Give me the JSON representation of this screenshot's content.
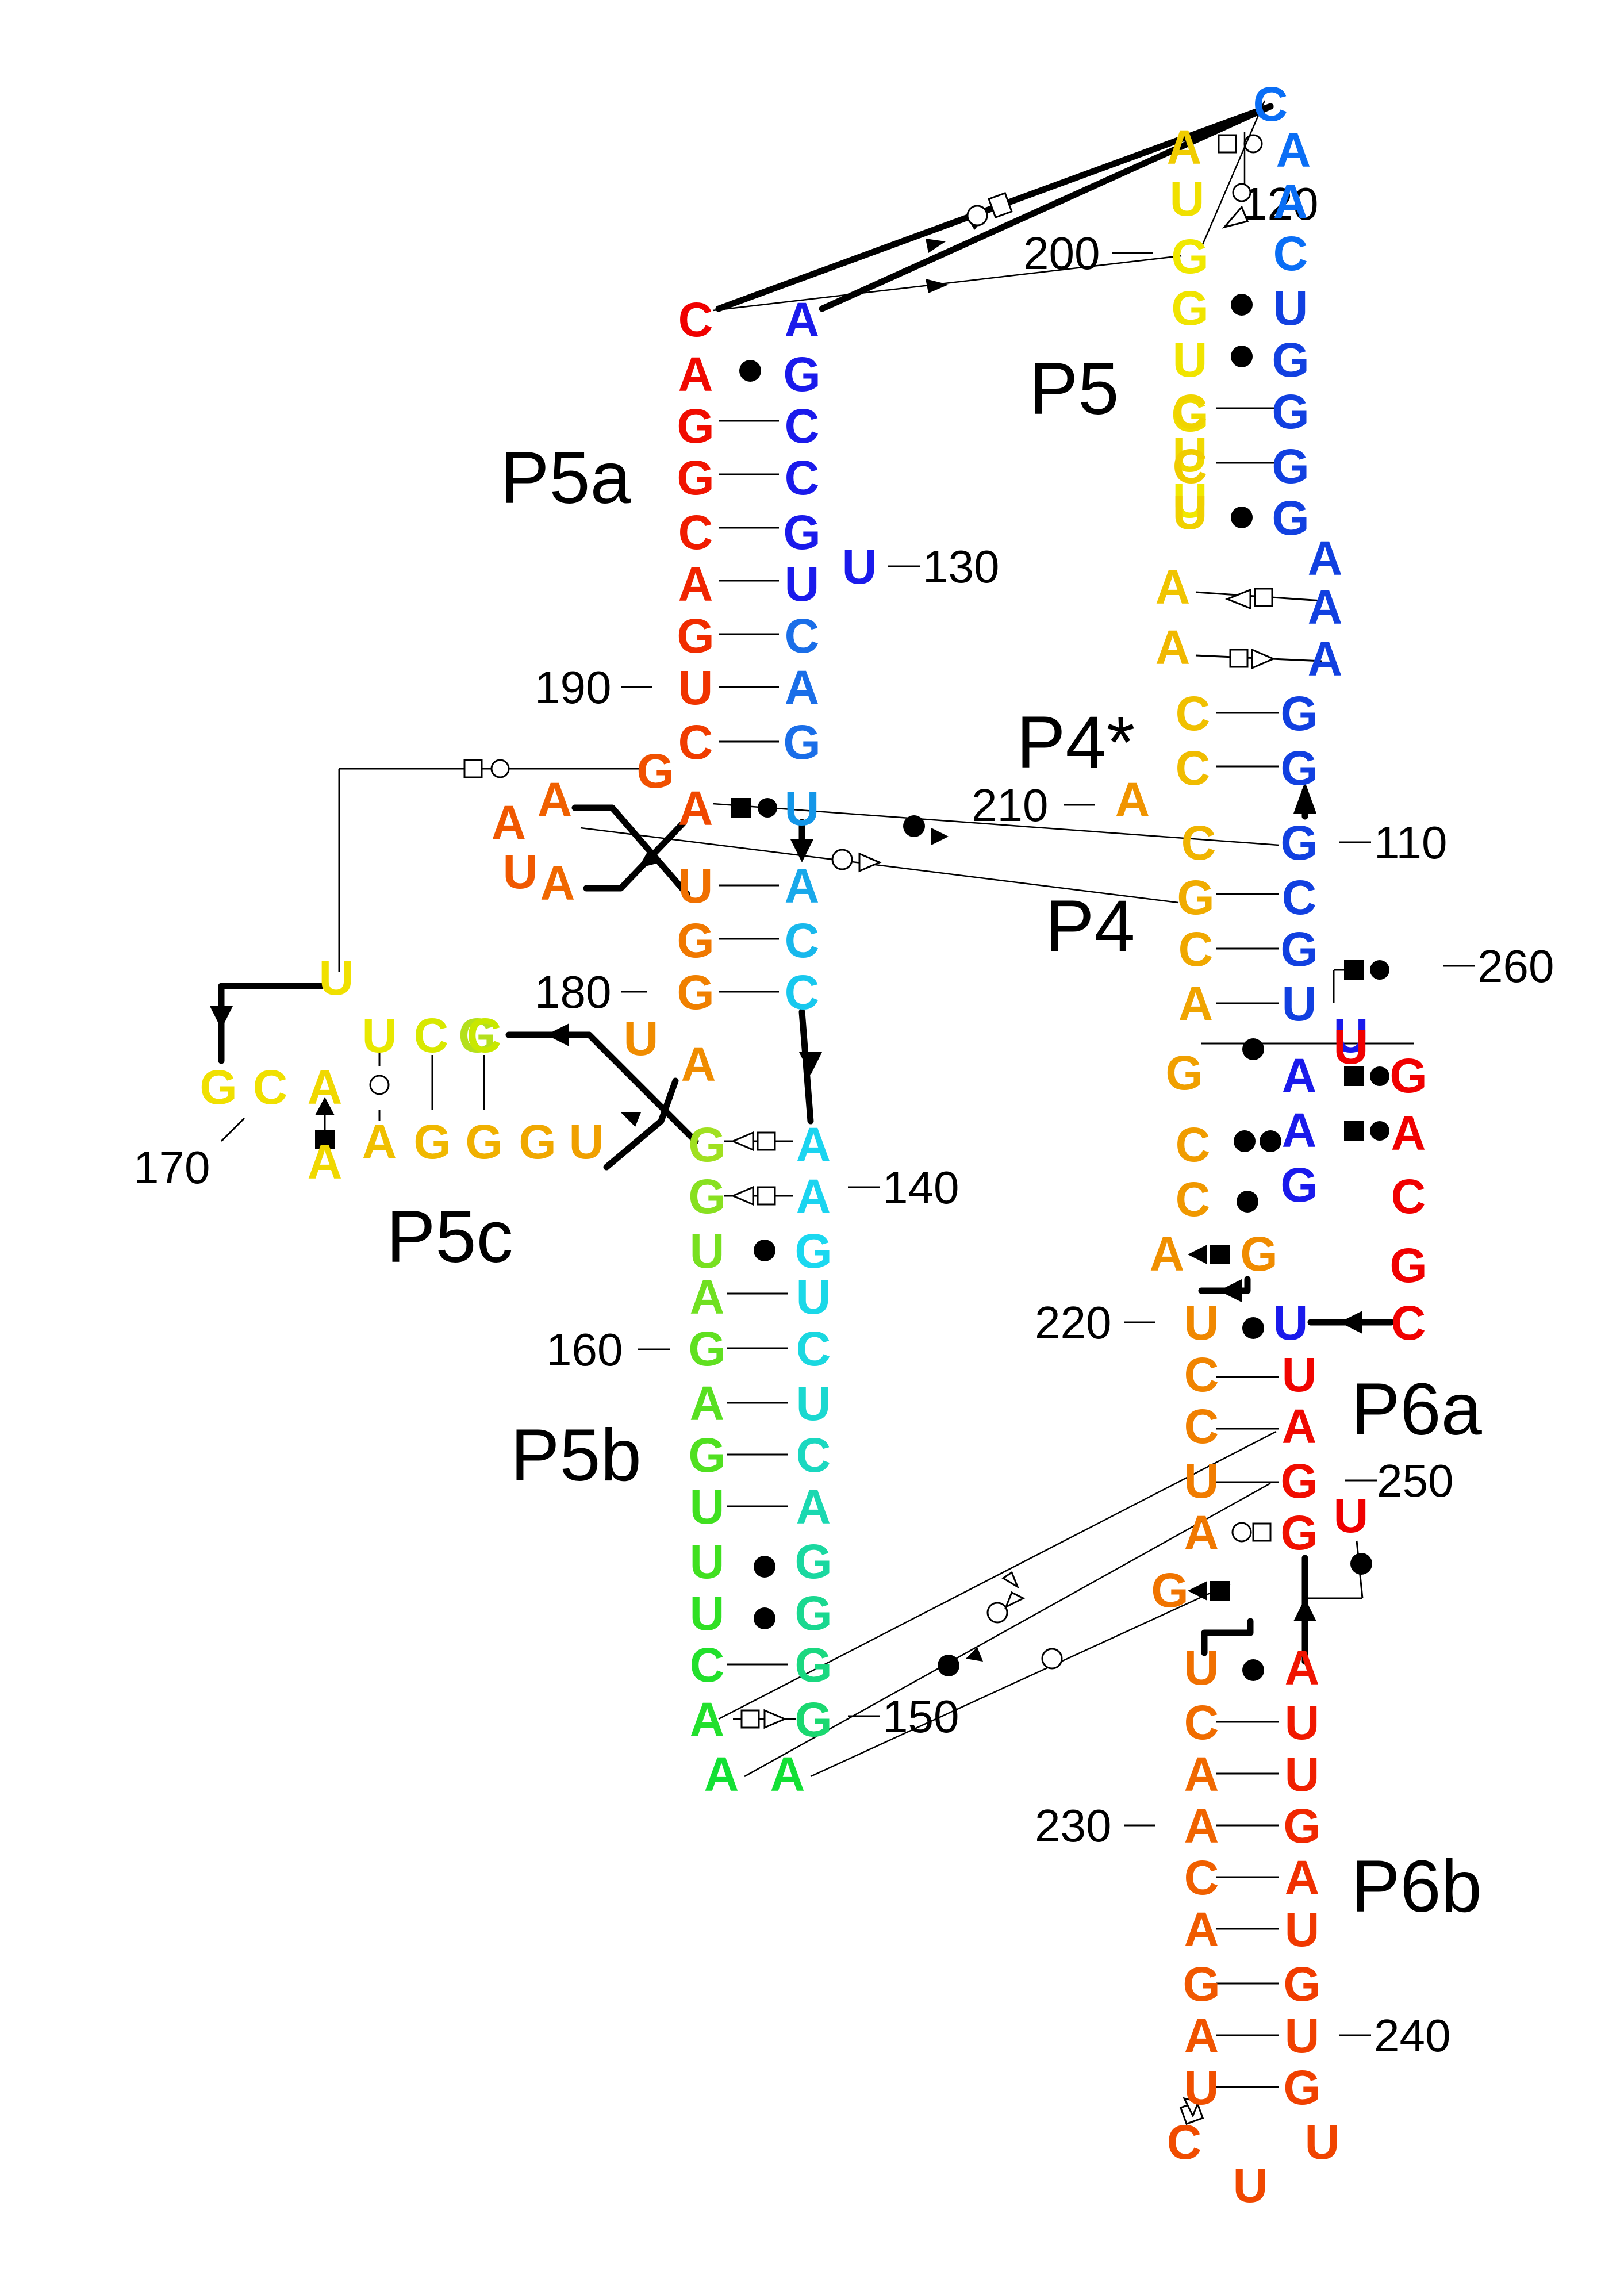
{
  "title": "",
  "helix_labels": {
    "p5": "P5",
    "p5a": "P5a",
    "p5b": "P5b",
    "p5c": "P5c",
    "p4star": "P4*",
    "p4": "P4",
    "p6a": "P6a",
    "p6b": "P6b"
  },
  "position_labels": [
    "110",
    "120",
    "130",
    "140",
    "150",
    "160",
    "170",
    "180",
    "190",
    "200",
    "210",
    "220",
    "230",
    "240",
    "250",
    "260"
  ],
  "nucleotides": [
    {
      "base": "C",
      "color": "#0a6ef5"
    },
    {
      "base": "A",
      "color": "#0a6ef5"
    },
    {
      "base": "A",
      "color": "#0a6ef5"
    },
    {
      "base": "C",
      "color": "#0a6ef5"
    },
    {
      "base": "U",
      "color": "#1140e0"
    },
    {
      "base": "G",
      "color": "#1140e0"
    },
    {
      "base": "G",
      "color": "#1140e0"
    },
    {
      "base": "G",
      "color": "#1140e0"
    },
    {
      "base": "G",
      "color": "#1140e0"
    },
    {
      "base": "A",
      "color": "#1140e0"
    },
    {
      "base": "A",
      "color": "#1140e0"
    },
    {
      "base": "A",
      "color": "#1140e0"
    },
    {
      "base": "G",
      "color": "#1140e0"
    },
    {
      "base": "G",
      "color": "#1140e0"
    },
    {
      "base": "G",
      "color": "#1140e0"
    },
    {
      "base": "C",
      "color": "#1140e0"
    },
    {
      "base": "G",
      "color": "#1140e0"
    },
    {
      "base": "U",
      "color": "#1140e0"
    },
    {
      "base": "U",
      "color": "#1a1aeb"
    },
    {
      "base": "A",
      "color": "#1a1aeb"
    },
    {
      "base": "A",
      "color": "#1a1aeb"
    },
    {
      "base": "G",
      "color": "#1a1aeb"
    },
    {
      "base": "A",
      "color": "#1a1aeb"
    },
    {
      "base": "G",
      "color": "#1a1aeb"
    },
    {
      "base": "C",
      "color": "#1a1aeb"
    },
    {
      "base": "C",
      "color": "#1a1aeb"
    },
    {
      "base": "G",
      "color": "#1a1aeb"
    },
    {
      "base": "U",
      "color": "#1a1aeb"
    },
    {
      "base": "U",
      "color": "#1a1aeb"
    },
    {
      "base": "C",
      "color": "#1a6ee8"
    },
    {
      "base": "A",
      "color": "#1a6ee8"
    },
    {
      "base": "G",
      "color": "#1a6ee8"
    },
    {
      "base": "U",
      "color": "#1496e8"
    },
    {
      "base": "A",
      "color": "#18a8ea"
    },
    {
      "base": "C",
      "color": "#18b8ec"
    },
    {
      "base": "C",
      "color": "#18c8ee"
    },
    {
      "base": "A",
      "color": "#1ad4f0"
    },
    {
      "base": "A",
      "color": "#1ad4f0"
    },
    {
      "base": "G",
      "color": "#1ad8f0"
    },
    {
      "base": "U",
      "color": "#1ad8e8"
    },
    {
      "base": "C",
      "color": "#1ad8e0"
    },
    {
      "base": "U",
      "color": "#1ad8d0"
    },
    {
      "base": "C",
      "color": "#1ad8c0"
    },
    {
      "base": "A",
      "color": "#1ad8b0"
    },
    {
      "base": "G",
      "color": "#1ad8a0"
    },
    {
      "base": "G",
      "color": "#1ad890"
    },
    {
      "base": "G",
      "color": "#1ad880"
    },
    {
      "base": "G",
      "color": "#1ad870"
    },
    {
      "base": "A",
      "color": "#12e034"
    },
    {
      "base": "A",
      "color": "#12e034"
    },
    {
      "base": "A",
      "color": "#22e02c"
    },
    {
      "base": "C",
      "color": "#22e02c"
    },
    {
      "base": "U",
      "color": "#30e024"
    },
    {
      "base": "U",
      "color": "#40e020"
    },
    {
      "base": "U",
      "color": "#40e020"
    },
    {
      "base": "G",
      "color": "#50e020"
    },
    {
      "base": "A",
      "color": "#58e020"
    },
    {
      "base": "G",
      "color": "#60e020"
    },
    {
      "base": "A",
      "color": "#70e020"
    },
    {
      "base": "U",
      "color": "#78e020"
    },
    {
      "base": "G",
      "color": "#88e020"
    },
    {
      "base": "G",
      "color": "#a0e020"
    },
    {
      "base": "G",
      "color": "#b4e01c"
    },
    {
      "base": "A",
      "color": "#f0d800"
    },
    {
      "base": "A",
      "color": "#f0d800"
    },
    {
      "base": "C",
      "color": "#f0e000"
    },
    {
      "base": "G",
      "color": "#f0e000"
    },
    {
      "base": "U",
      "color": "#f0e000"
    },
    {
      "base": "U",
      "color": "#e8e800"
    },
    {
      "base": "C",
      "color": "#d8e800"
    },
    {
      "base": "C",
      "color": "#c8e800"
    },
    {
      "base": "A",
      "color": "#f0c000"
    },
    {
      "base": "G",
      "color": "#f0b800"
    },
    {
      "base": "G",
      "color": "#f0b000"
    },
    {
      "base": "G",
      "color": "#f0a800"
    },
    {
      "base": "U",
      "color": "#f0a000"
    },
    {
      "base": "U",
      "color": "#f08c00"
    },
    {
      "base": "A",
      "color": "#f08c00"
    },
    {
      "base": "G",
      "color": "#f08000"
    },
    {
      "base": "G",
      "color": "#f07800"
    },
    {
      "base": "U",
      "color": "#f07000"
    },
    {
      "base": "A",
      "color": "#f06800"
    },
    {
      "base": "A",
      "color": "#f06000"
    },
    {
      "base": "U",
      "color": "#f05800"
    },
    {
      "base": "A",
      "color": "#f05800"
    },
    {
      "base": "G",
      "color": "#f05000"
    },
    {
      "base": "A",
      "color": "#f04800"
    },
    {
      "base": "C",
      "color": "#f03c00"
    },
    {
      "base": "U",
      "color": "#f03400"
    },
    {
      "base": "G",
      "color": "#f02c00"
    },
    {
      "base": "A",
      "color": "#f02400"
    },
    {
      "base": "C",
      "color": "#f01c00"
    },
    {
      "base": "G",
      "color": "#f01400"
    },
    {
      "base": "G",
      "color": "#f00c00"
    },
    {
      "base": "A",
      "color": "#f00800"
    },
    {
      "base": "C",
      "color": "#f00000"
    },
    {
      "base": "U",
      "color": "#f0e800"
    },
    {
      "base": "U",
      "color": "#f0e400"
    },
    {
      "base": "U",
      "color": "#f0e000"
    },
    {
      "base": "U",
      "color": "#f0d800"
    },
    {
      "base": "U",
      "color": "#f0d000"
    },
    {
      "base": "G",
      "color": "#f0e800"
    },
    {
      "base": "G",
      "color": "#f0e400"
    },
    {
      "base": "G",
      "color": "#f0dc00"
    },
    {
      "base": "C",
      "color": "#f0d400"
    },
    {
      "base": "C",
      "color": "#f0cc00"
    },
    {
      "base": "A",
      "color": "#f0cc00"
    },
    {
      "base": "A",
      "color": "#f0c400"
    },
    {
      "base": "C",
      "color": "#f0c000"
    },
    {
      "base": "C",
      "color": "#f0bc00"
    },
    {
      "base": "A",
      "color": "#f0b800"
    },
    {
      "base": "C",
      "color": "#f0b400"
    },
    {
      "base": "G",
      "color": "#f0ac00"
    },
    {
      "base": "C",
      "color": "#f0a800"
    },
    {
      "base": "A",
      "color": "#f0a400"
    },
    {
      "base": "G",
      "color": "#f0a000"
    },
    {
      "base": "C",
      "color": "#f09c00"
    },
    {
      "base": "C",
      "color": "#f09800"
    },
    {
      "base": "A",
      "color": "#f09400"
    },
    {
      "base": "A",
      "color": "#f09000"
    },
    {
      "base": "G",
      "color": "#f08c00"
    },
    {
      "base": "U",
      "color": "#f08800"
    },
    {
      "base": "C",
      "color": "#f08400"
    },
    {
      "base": "C",
      "color": "#f08000"
    },
    {
      "base": "U",
      "color": "#f07c00"
    },
    {
      "base": "A",
      "color": "#f07800"
    },
    {
      "base": "G",
      "color": "#f07400"
    },
    {
      "base": "U",
      "color": "#f07000"
    },
    {
      "base": "C",
      "color": "#f06c00"
    },
    {
      "base": "A",
      "color": "#f06800"
    },
    {
      "base": "A",
      "color": "#f06400"
    },
    {
      "base": "C",
      "color": "#f06000"
    },
    {
      "base": "A",
      "color": "#f05c00"
    },
    {
      "base": "G",
      "color": "#f05800"
    },
    {
      "base": "A",
      "color": "#f05400"
    },
    {
      "base": "U",
      "color": "#f05000"
    },
    {
      "base": "C",
      "color": "#f04c00"
    },
    {
      "base": "U",
      "color": "#f04800"
    },
    {
      "base": "U",
      "color": "#f04400"
    },
    {
      "base": "G",
      "color": "#f04000"
    },
    {
      "base": "U",
      "color": "#f04000"
    },
    {
      "base": "G",
      "color": "#f03c00"
    },
    {
      "base": "U",
      "color": "#f03800"
    },
    {
      "base": "A",
      "color": "#f03000"
    },
    {
      "base": "G",
      "color": "#f02800"
    },
    {
      "base": "U",
      "color": "#f02000"
    },
    {
      "base": "U",
      "color": "#f01800"
    },
    {
      "base": "A",
      "color": "#f01400"
    },
    {
      "base": "G",
      "color": "#f01000"
    },
    {
      "base": "G",
      "color": "#f00c00"
    },
    {
      "base": "A",
      "color": "#f00800"
    },
    {
      "base": "U",
      "color": "#f00400"
    },
    {
      "base": "U",
      "color": "#f00000"
    },
    {
      "base": "U",
      "color": "#1a1aeb"
    },
    {
      "base": "U",
      "color": "#f00000"
    },
    {
      "base": "G",
      "color": "#f00000"
    },
    {
      "base": "A",
      "color": "#f00000"
    },
    {
      "base": "C",
      "color": "#f00000"
    },
    {
      "base": "G",
      "color": "#f00000"
    },
    {
      "base": "C",
      "color": "#f00000"
    }
  ]
}
